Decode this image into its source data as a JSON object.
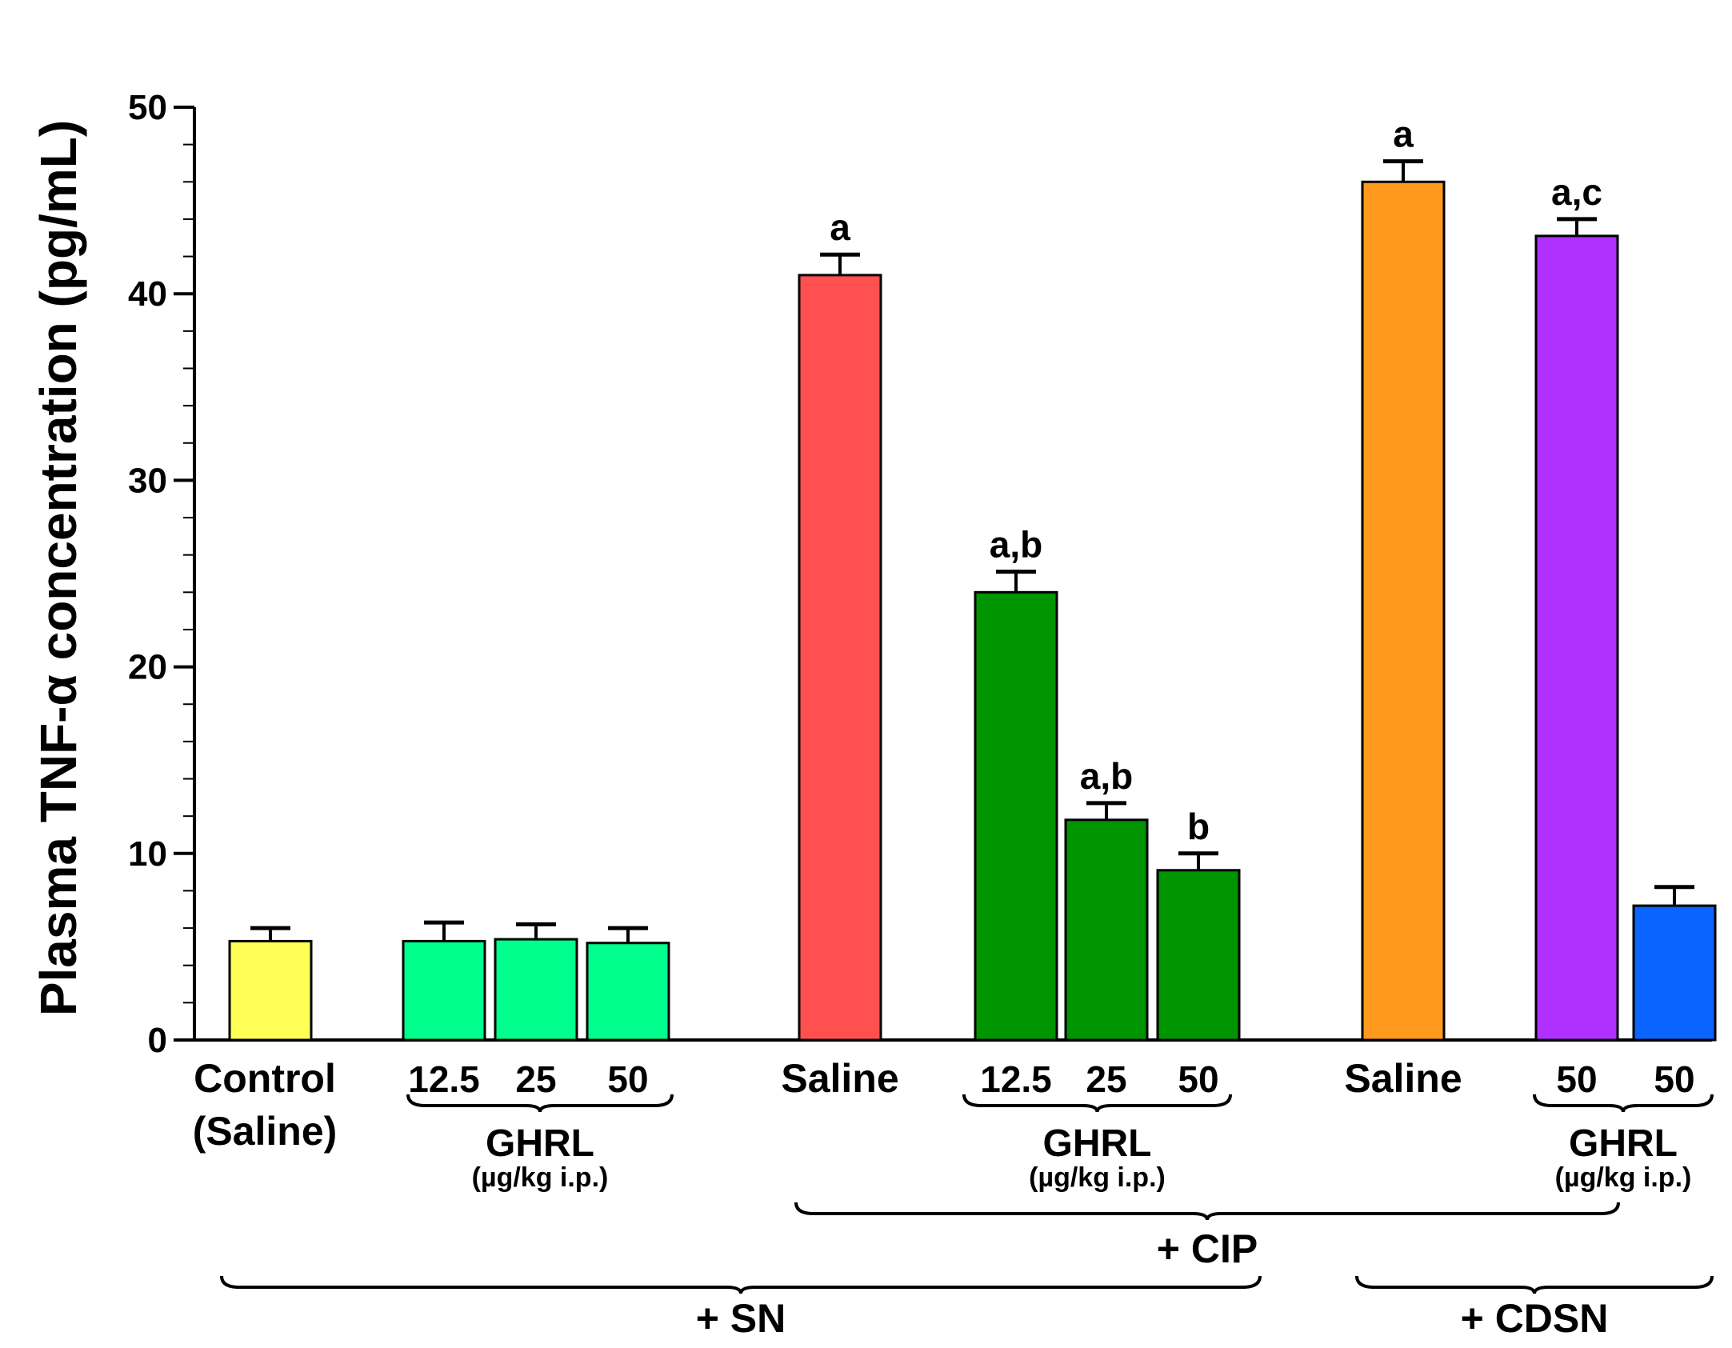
{
  "chart_data": {
    "type": "bar",
    "ylabel": "Plasma TNF-α concentration (pg/mL)",
    "ylim": [
      0,
      50
    ],
    "yticks": [
      0,
      10,
      20,
      30,
      40,
      50
    ],
    "grid": false,
    "bars": [
      {
        "label": "Control\n(Saline)",
        "value": 5.3,
        "error": 0.7,
        "color": "#ffff55",
        "annotation": ""
      },
      {
        "label": "12.5",
        "value": 5.3,
        "error": 1.0,
        "color": "#00ff8c",
        "annotation": ""
      },
      {
        "label": "25",
        "value": 5.4,
        "error": 0.8,
        "color": "#00ff8c",
        "annotation": ""
      },
      {
        "label": "50",
        "value": 5.2,
        "error": 0.8,
        "color": "#00ff8c",
        "annotation": ""
      },
      {
        "label": "Saline",
        "value": 41.0,
        "error": 1.1,
        "color": "#ff5050",
        "annotation": "a"
      },
      {
        "label": "12.5",
        "value": 24.0,
        "error": 1.1,
        "color": "#009400",
        "annotation": "a,b"
      },
      {
        "label": "25",
        "value": 11.8,
        "error": 0.9,
        "color": "#009400",
        "annotation": "a,b"
      },
      {
        "label": "50",
        "value": 9.1,
        "error": 0.9,
        "color": "#009400",
        "annotation": "b"
      },
      {
        "label": "Saline",
        "value": 46.0,
        "error": 1.1,
        "color": "#ff9a1e",
        "annotation": "a"
      },
      {
        "label": "50",
        "value": 43.1,
        "error": 0.9,
        "color": "#b030ff",
        "annotation": "a,c"
      },
      {
        "label": "50",
        "value": 7.2,
        "error": 1.0,
        "color": "#0a64ff",
        "annotation": ""
      }
    ],
    "brackets": [
      {
        "label": "GHRL",
        "sublabel": "(µg/kg i.p.)",
        "from": 1,
        "to": 3,
        "level": 1
      },
      {
        "label": "GHRL",
        "sublabel": "(µg/kg i.p.)",
        "from": 5,
        "to": 7,
        "level": 1
      },
      {
        "label": "GHRL",
        "sublabel": "(µg/kg i.p.)",
        "from": 9,
        "to": 10,
        "level": 1
      },
      {
        "label": "+ CIP",
        "from": 4,
        "to": 9,
        "level": 2
      },
      {
        "label": "+ SN",
        "from": 0,
        "to": 7,
        "level": 3
      },
      {
        "label": "+ CDSN",
        "from": 8,
        "to": 10,
        "level": 3
      }
    ]
  }
}
